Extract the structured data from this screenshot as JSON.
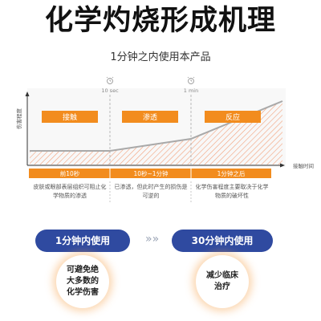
{
  "title": "化学灼烧形成机理",
  "subtitle": "1分钟之内使用本产品",
  "colors": {
    "accent": "#f28c1e",
    "curve": "#a9a9a9",
    "hatch": "#f2a07a",
    "pill": "#2f4aa0"
  },
  "chart": {
    "y_axis_label": "伤害程度",
    "x_axis_label": "接触时间",
    "markers": [
      {
        "label": "10 sec",
        "icon": "alarm-clock-icon"
      },
      {
        "label": "1 min",
        "icon": "alarm-clock-icon"
      }
    ],
    "phases": [
      {
        "name": "接触",
        "time": "前10秒",
        "desc": "皮肤或眼部表层组织可阻止化学物质的渗透"
      },
      {
        "name": "渗透",
        "time": "10秒~1分钟",
        "desc": "已渗透，但此时产生的损伤是可逆的"
      },
      {
        "name": "反应",
        "time": "1分钟之后",
        "desc": "化学伤害程度主要取决于化学物质的破坏性"
      }
    ]
  },
  "comparison": {
    "left": {
      "label": "1分钟内使用",
      "result": "可避免绝大多数的化学伤害"
    },
    "right": {
      "label": "30分钟内使用",
      "result": "减少临床治疗"
    },
    "arrow_icon": "double-chevron-right-icon"
  }
}
